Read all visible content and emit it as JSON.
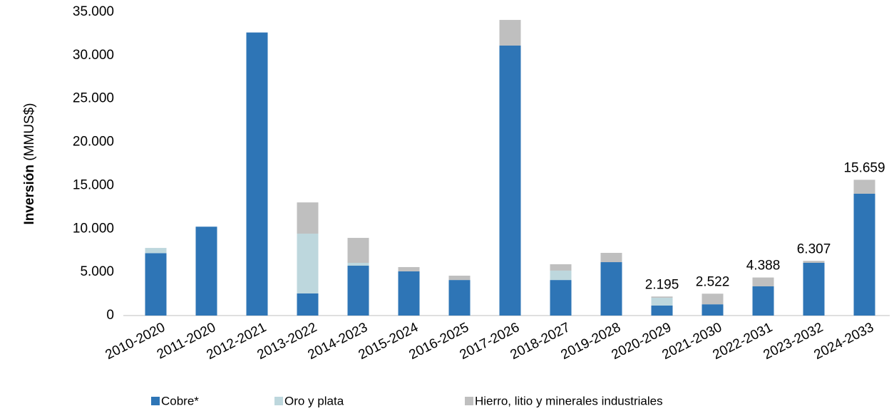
{
  "chart_data": {
    "type": "stacked_bar",
    "y_label_bold": "Inversión",
    "y_label_unit": "(MMUS$)",
    "categories": [
      "2010-2020",
      "2011-2020",
      "2012-2021",
      "2013-2022",
      "2014-2023",
      "2015-2024",
      "2016-2025",
      "2017-2026",
      "2018-2027",
      "2019-2028",
      "2020-2029",
      "2021-2030",
      "2022-2031",
      "2023-2032",
      "2024-2033"
    ],
    "series": [
      {
        "name": "Cobre*",
        "color": "#2e75b6",
        "values": [
          7200,
          10250,
          32650,
          2550,
          5750,
          5100,
          4100,
          31140,
          4100,
          6160,
          1150,
          1300,
          3370,
          6080,
          14050
        ]
      },
      {
        "name": "Oro y plata",
        "color": "#bdd7dd",
        "values": [
          600,
          0,
          0,
          6900,
          330,
          0,
          0,
          0,
          1080,
          0,
          900,
          0,
          0,
          0,
          0
        ]
      },
      {
        "name": "Hierro, litio y minerales industriales",
        "color": "#bfbfbf",
        "values": [
          0,
          0,
          0,
          3600,
          2880,
          490,
          500,
          2960,
          740,
          1070,
          145,
          1222,
          1018,
          227,
          1609
        ]
      }
    ],
    "totals": [
      null,
      null,
      null,
      null,
      null,
      null,
      null,
      null,
      null,
      null,
      2195,
      2522,
      4388,
      6307,
      15659
    ],
    "value_labels": [
      null,
      null,
      null,
      null,
      null,
      null,
      null,
      null,
      null,
      null,
      "2.195",
      "2.522",
      "4.388",
      "6.307",
      "15.659"
    ],
    "ylim": [
      0,
      35000
    ],
    "yticks": [
      0,
      {
        "value": 5000,
        "label": "5.000"
      },
      {
        "value": 10000,
        "label": "10.000"
      },
      {
        "value": 15000,
        "label": "15.000"
      },
      {
        "value": 20000,
        "label": "20.000"
      },
      {
        "value": 25000,
        "label": "25.000"
      },
      {
        "value": 30000,
        "label": "30.000"
      },
      {
        "value": 35000,
        "label": "35.000"
      }
    ],
    "grid": false,
    "legend": "bottom"
  }
}
